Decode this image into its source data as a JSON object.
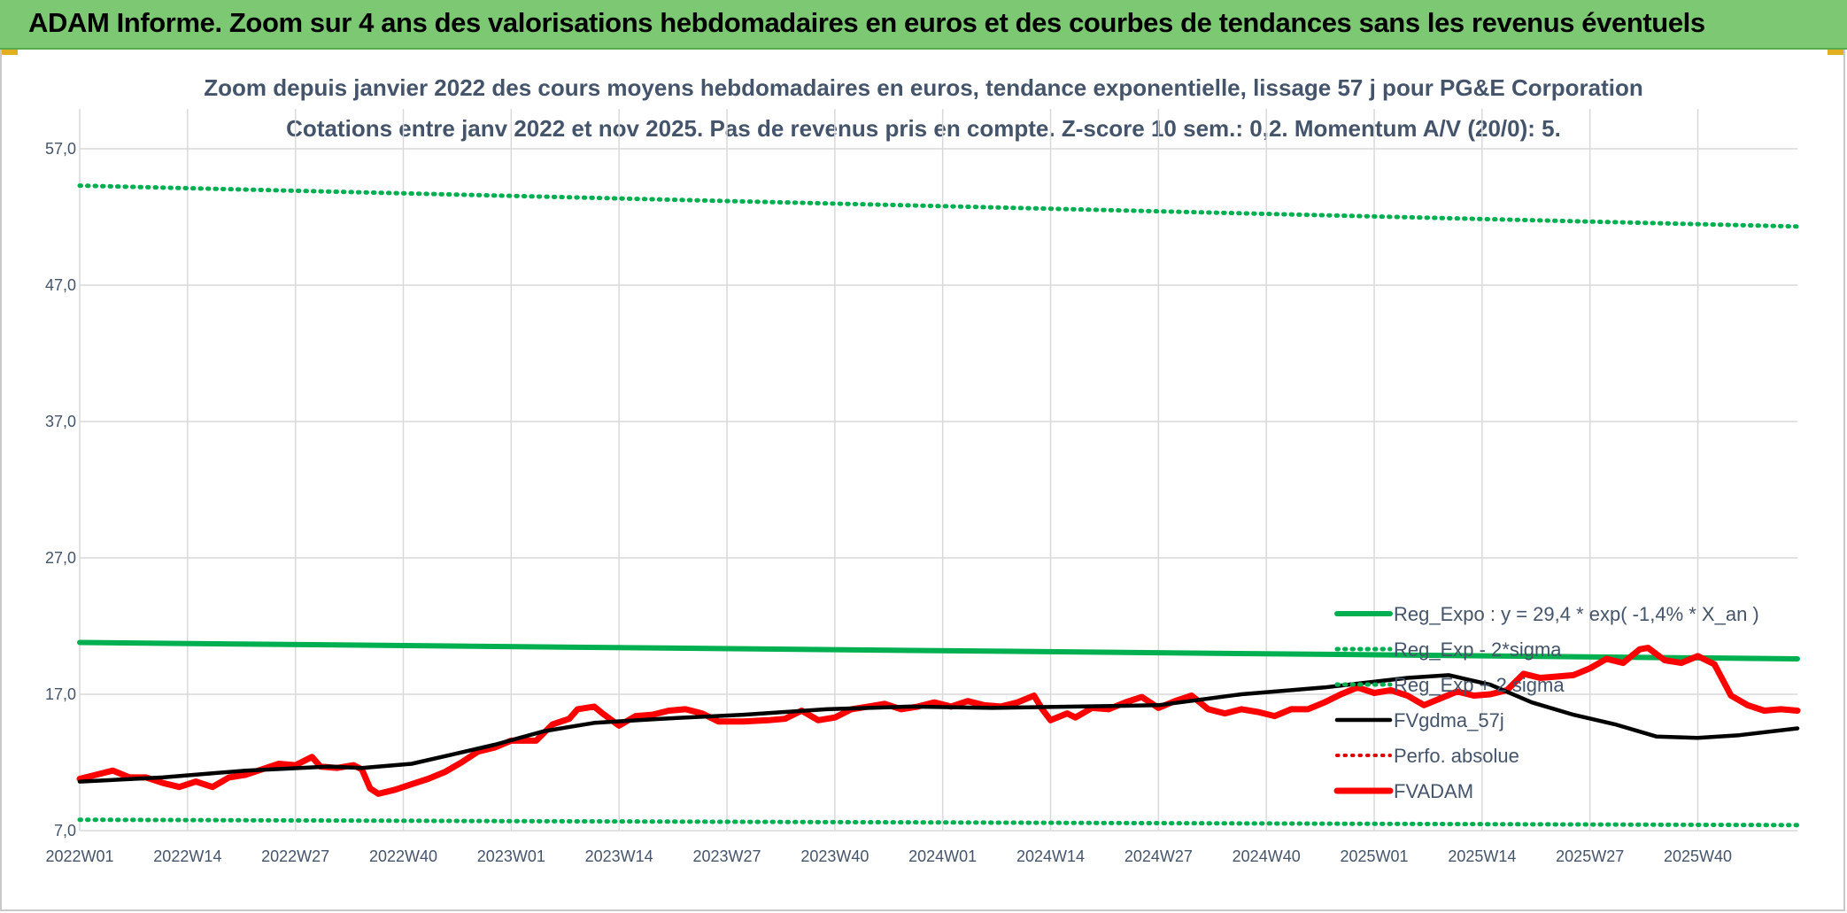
{
  "banner": {
    "title": "ADAM Informe. Zoom sur 4 ans des valorisations hebdomadaires en euros et des courbes de tendances sans les revenus éventuels"
  },
  "colors": {
    "banner_bg": "#7dc873",
    "reg_expo": "#00b050",
    "band": "#00b050",
    "fvgdma": "#000000",
    "perfo": "#e00000",
    "fvadam": "#ff0000",
    "grid": "#d9d9d9",
    "text": "#44546a"
  },
  "chart_data": {
    "type": "line",
    "title": "Zoom depuis janvier 2022 des cours moyens hebdomadaires en euros, tendance exponentielle, lissage 57 j pour PG&E Corporation",
    "subtitle": "Cotations entre janv 2022 et nov 2025. Pas de revenus pris en compte. Z-score 10 sem.: 0,2. Momentum A/V (20/0): 5.",
    "xlabel": "",
    "ylabel": "",
    "ylim": [
      7,
      57
    ],
    "yticks": [
      "57,0",
      "47,0",
      "37,0",
      "27,0",
      "17,0",
      "7,0"
    ],
    "ytick_values": [
      57,
      47,
      37,
      27,
      17,
      7
    ],
    "xticks": [
      "2022W01",
      "2022W14",
      "2022W27",
      "2022W40",
      "2023W01",
      "2023W14",
      "2023W27",
      "2023W40",
      "2024W01",
      "2024W14",
      "2024W27",
      "2024W40",
      "2025W01",
      "2025W14",
      "2025W27",
      "2025W40"
    ],
    "n_weeks": 208,
    "grid": true,
    "legend_position": "bottom-right",
    "series": [
      {
        "name": "Reg_Expo : y = 29,4 * exp( -1,4% *  X_an )",
        "style": "solid-thick",
        "points": [
          [
            0,
            20.8
          ],
          [
            207,
            19.6
          ]
        ]
      },
      {
        "name": "Reg_Exp - 2*sigma",
        "style": "dotted",
        "points": [
          [
            0,
            7.8
          ],
          [
            207,
            7.4
          ]
        ]
      },
      {
        "name": "Reg_Exp + 2 sigma",
        "style": "dotted",
        "points": [
          [
            0,
            54.3
          ],
          [
            207,
            51.3
          ]
        ]
      },
      {
        "name": "FVgdma_57j",
        "style": "solid",
        "points": [
          [
            0,
            10.6
          ],
          [
            10,
            10.9
          ],
          [
            20,
            11.4
          ],
          [
            30,
            11.7
          ],
          [
            34,
            11.6
          ],
          [
            40,
            11.9
          ],
          [
            45,
            12.6
          ],
          [
            50,
            13.3
          ],
          [
            56,
            14.3
          ],
          [
            62,
            14.9
          ],
          [
            70,
            15.2
          ],
          [
            80,
            15.5
          ],
          [
            90,
            15.9
          ],
          [
            100,
            16.1
          ],
          [
            110,
            16.0
          ],
          [
            120,
            16.1
          ],
          [
            130,
            16.2
          ],
          [
            140,
            17.0
          ],
          [
            150,
            17.5
          ],
          [
            160,
            18.2
          ],
          [
            165,
            18.4
          ],
          [
            170,
            17.7
          ],
          [
            175,
            16.4
          ],
          [
            180,
            15.5
          ],
          [
            185,
            14.8
          ],
          [
            190,
            13.9
          ],
          [
            195,
            13.8
          ],
          [
            200,
            14.0
          ],
          [
            207,
            14.5
          ]
        ]
      },
      {
        "name": "Perfo. absolue",
        "style": "dotted-red",
        "points": []
      },
      {
        "name": "FVADAM",
        "style": "solid-thick",
        "points": [
          [
            0,
            10.8
          ],
          [
            2,
            11.1
          ],
          [
            4,
            11.4
          ],
          [
            6,
            10.9
          ],
          [
            8,
            10.9
          ],
          [
            10,
            10.5
          ],
          [
            12,
            10.2
          ],
          [
            14,
            10.6
          ],
          [
            16,
            10.2
          ],
          [
            18,
            10.9
          ],
          [
            20,
            11.1
          ],
          [
            22,
            11.5
          ],
          [
            24,
            11.9
          ],
          [
            26,
            11.8
          ],
          [
            28,
            12.4
          ],
          [
            29,
            11.7
          ],
          [
            31,
            11.6
          ],
          [
            33,
            11.8
          ],
          [
            34,
            11.5
          ],
          [
            35,
            10.1
          ],
          [
            36,
            9.7
          ],
          [
            38,
            10.0
          ],
          [
            40,
            10.4
          ],
          [
            42,
            10.8
          ],
          [
            44,
            11.3
          ],
          [
            46,
            12.0
          ],
          [
            48,
            12.8
          ],
          [
            50,
            13.1
          ],
          [
            52,
            13.6
          ],
          [
            55,
            13.6
          ],
          [
            57,
            14.8
          ],
          [
            59,
            15.2
          ],
          [
            60,
            15.9
          ],
          [
            62,
            16.1
          ],
          [
            63,
            15.6
          ],
          [
            65,
            14.7
          ],
          [
            67,
            15.4
          ],
          [
            69,
            15.5
          ],
          [
            71,
            15.8
          ],
          [
            73,
            15.9
          ],
          [
            75,
            15.6
          ],
          [
            77,
            15.0
          ],
          [
            80,
            15.0
          ],
          [
            83,
            15.1
          ],
          [
            85,
            15.2
          ],
          [
            87,
            15.8
          ],
          [
            89,
            15.1
          ],
          [
            91,
            15.3
          ],
          [
            93,
            15.9
          ],
          [
            95,
            16.1
          ],
          [
            97,
            16.3
          ],
          [
            99,
            15.9
          ],
          [
            101,
            16.1
          ],
          [
            103,
            16.4
          ],
          [
            105,
            16.1
          ],
          [
            107,
            16.5
          ],
          [
            109,
            16.2
          ],
          [
            111,
            16.1
          ],
          [
            113,
            16.4
          ],
          [
            115,
            16.9
          ],
          [
            116,
            15.9
          ],
          [
            117,
            15.1
          ],
          [
            119,
            15.6
          ],
          [
            120,
            15.3
          ],
          [
            122,
            16.0
          ],
          [
            124,
            15.9
          ],
          [
            126,
            16.4
          ],
          [
            128,
            16.8
          ],
          [
            130,
            16.0
          ],
          [
            132,
            16.5
          ],
          [
            134,
            16.9
          ],
          [
            136,
            15.9
          ],
          [
            138,
            15.6
          ],
          [
            140,
            15.9
          ],
          [
            142,
            15.7
          ],
          [
            144,
            15.4
          ],
          [
            146,
            15.9
          ],
          [
            148,
            15.9
          ],
          [
            150,
            16.4
          ],
          [
            152,
            17.0
          ],
          [
            154,
            17.5
          ],
          [
            156,
            17.1
          ],
          [
            158,
            17.3
          ],
          [
            160,
            16.9
          ],
          [
            162,
            16.2
          ],
          [
            164,
            16.7
          ],
          [
            166,
            17.2
          ],
          [
            168,
            16.9
          ],
          [
            170,
            17.0
          ],
          [
            172,
            17.3
          ],
          [
            174,
            18.5
          ],
          [
            176,
            18.2
          ],
          [
            178,
            18.3
          ],
          [
            180,
            18.4
          ],
          [
            182,
            18.9
          ],
          [
            184,
            19.6
          ],
          [
            186,
            19.3
          ],
          [
            188,
            20.3
          ],
          [
            189,
            20.4
          ],
          [
            191,
            19.5
          ],
          [
            193,
            19.3
          ],
          [
            195,
            19.8
          ],
          [
            197,
            19.2
          ],
          [
            199,
            16.9
          ],
          [
            201,
            16.2
          ],
          [
            203,
            15.8
          ],
          [
            205,
            15.9
          ],
          [
            207,
            15.8
          ]
        ]
      }
    ]
  }
}
